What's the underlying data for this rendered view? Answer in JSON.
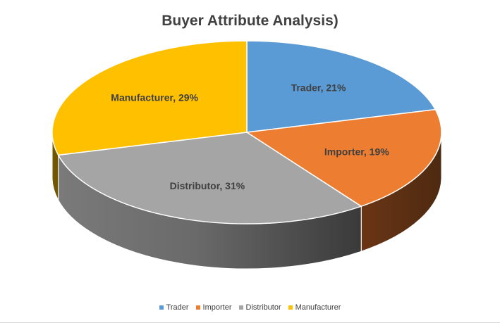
{
  "chart_data": {
    "type": "pie",
    "title": "Buyer Attribute  Analysis)",
    "categories": [
      "Trader",
      "Importer",
      "Distributor",
      "Manufacturer"
    ],
    "values": [
      21,
      19,
      31,
      29
    ],
    "labels": [
      "Trader, 21%",
      "Importer, 19%",
      "Distributor, 31%",
      "Manufacturer, 29%"
    ],
    "colors": [
      "#5b9bd5",
      "#ed7d31",
      "#a5a5a5",
      "#ffc000"
    ],
    "style": "3d",
    "legend_position": "bottom"
  }
}
